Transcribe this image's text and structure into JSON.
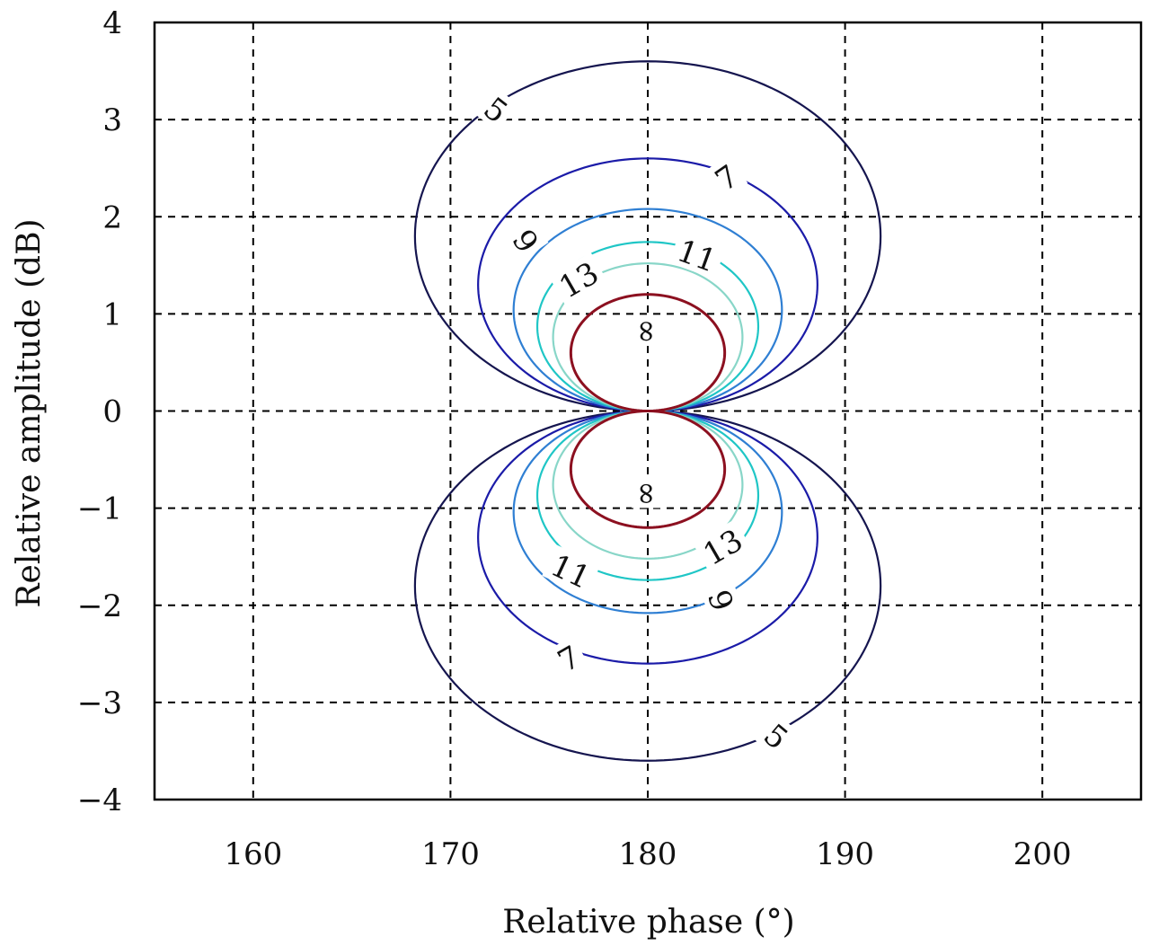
{
  "chart_data": {
    "type": "contour",
    "xlabel": "Relative phase (°)",
    "ylabel": "Relative amplitude (dB)",
    "xlim": [
      155,
      205
    ],
    "ylim": [
      -4,
      4
    ],
    "xticks": [
      160,
      170,
      180,
      190,
      200
    ],
    "yticks": [
      4,
      3,
      2,
      1,
      0,
      -1,
      -2,
      -3,
      -4
    ],
    "ytick_labels": [
      "4",
      "3",
      "2",
      "1",
      "0",
      "−1",
      "−2",
      "−3",
      "−4"
    ],
    "grid": true,
    "levels": [
      {
        "label": "5",
        "color": "#15154f",
        "cx": 180,
        "cy": 1.8,
        "rx": 11.8,
        "ry": 1.8
      },
      {
        "label": "7",
        "color": "#1b1ba8",
        "cx": 180,
        "cy": 1.3,
        "rx": 8.6,
        "ry": 1.3
      },
      {
        "label": "9",
        "color": "#2f7fd3",
        "cx": 180,
        "cy": 1.04,
        "rx": 6.8,
        "ry": 1.04
      },
      {
        "label": "11",
        "color": "#1fc6c6",
        "cx": 180,
        "cy": 0.87,
        "rx": 5.6,
        "ry": 0.87
      },
      {
        "label": "13",
        "color": "#88d6c8",
        "cx": 180,
        "cy": 0.76,
        "rx": 4.8,
        "ry": 0.76
      },
      {
        "label": "∞",
        "color": "#8c1020",
        "cx": 180,
        "cy": 0.6,
        "rx": 3.9,
        "ry": 0.6
      }
    ],
    "contour_labels": [
      {
        "text": "5",
        "x": 172.3,
        "y": 3.1,
        "angle": 38
      },
      {
        "text": "7",
        "x": 184.0,
        "y": 2.4,
        "angle": -35
      },
      {
        "text": "9",
        "x": 173.8,
        "y": 1.75,
        "angle": 55
      },
      {
        "text": "11",
        "x": 182.5,
        "y": 1.6,
        "angle": 20
      },
      {
        "text": "13",
        "x": 176.5,
        "y": 1.35,
        "angle": -30
      },
      {
        "text": "∞",
        "x": 180,
        "y": 0.82,
        "angle": 90
      },
      {
        "text": "∞",
        "x": 180,
        "y": -0.85,
        "angle": 90
      },
      {
        "text": "13",
        "x": 183.8,
        "y": -1.4,
        "angle": -30
      },
      {
        "text": "11",
        "x": 176.1,
        "y": -1.65,
        "angle": 25
      },
      {
        "text": "9",
        "x": 183.7,
        "y": -1.95,
        "angle": 70
      },
      {
        "text": "7",
        "x": 176.0,
        "y": -2.55,
        "angle": -30
      },
      {
        "text": "5",
        "x": 186.5,
        "y": -3.35,
        "angle": 40
      }
    ]
  }
}
